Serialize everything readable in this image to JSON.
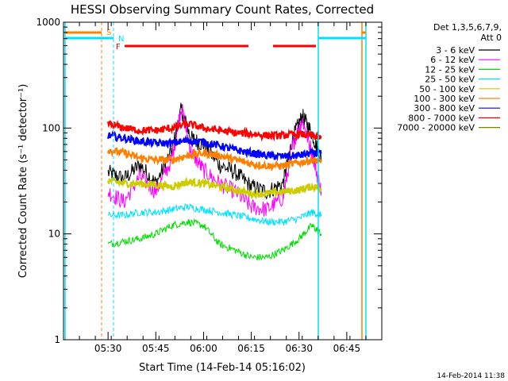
{
  "chart_data": {
    "type": "line",
    "title": "HESSI Observing Summary Count Rates, Corrected",
    "xlabel": "Start Time (14-Feb-14 05:16:02)",
    "ylabel": "Corrected Count Rate (s⁻¹ detector⁻¹)",
    "y_scale": "log",
    "ylim": [
      1,
      1000
    ],
    "xlim": [
      "05:16",
      "06:56"
    ],
    "x_ticks": [
      "05:30",
      "05:45",
      "06:00",
      "06:15",
      "06:30",
      "06:45"
    ],
    "y_ticks": [
      "1",
      "10",
      "100",
      "1000"
    ],
    "timestamp": "14-Feb-2014 11:38",
    "legend": {
      "placement": "right",
      "header_line1": "Det 1,3,5,6,7,9,",
      "header_line2": "Att 0"
    },
    "flags": [
      {
        "label": "S",
        "color": "#ff8000"
      },
      {
        "label": "N",
        "color": "#00e0ff"
      },
      {
        "label": "F",
        "color": "#ff0000"
      }
    ],
    "series": [
      {
        "name": "3 - 6 keV",
        "color": "#000000",
        "x": [
          "05:30",
          "05:35",
          "05:40",
          "05:45",
          "05:50",
          "05:53",
          "05:56",
          "06:00",
          "06:05",
          "06:10",
          "06:15",
          "06:20",
          "06:25",
          "06:28",
          "06:31",
          "06:34",
          "06:37"
        ],
        "values": [
          38,
          33,
          45,
          30,
          60,
          150,
          80,
          70,
          45,
          38,
          28,
          25,
          30,
          80,
          130,
          90,
          50
        ]
      },
      {
        "name": "6 - 12 keV",
        "color": "#ff00ff",
        "x": [
          "05:30",
          "05:35",
          "05:40",
          "05:45",
          "05:50",
          "05:53",
          "05:56",
          "06:00",
          "06:05",
          "06:10",
          "06:15",
          "06:20",
          "06:25",
          "06:28",
          "06:31",
          "06:34",
          "06:37"
        ],
        "values": [
          25,
          20,
          35,
          25,
          50,
          160,
          60,
          40,
          30,
          25,
          18,
          17,
          22,
          70,
          120,
          60,
          25
        ]
      },
      {
        "name": "12 - 25 keV",
        "color": "#00dd00",
        "x": [
          "05:30",
          "05:35",
          "05:40",
          "05:45",
          "05:50",
          "05:55",
          "06:00",
          "06:05",
          "06:10",
          "06:15",
          "06:20",
          "06:25",
          "06:30",
          "06:34",
          "06:37"
        ],
        "values": [
          8,
          8.5,
          9,
          10,
          12,
          13,
          12,
          8,
          7,
          6,
          6,
          7,
          9,
          12,
          10
        ]
      },
      {
        "name": "25 - 50 keV",
        "color": "#00e0ff",
        "x": [
          "05:30",
          "05:35",
          "05:40",
          "05:45",
          "05:50",
          "05:55",
          "06:00",
          "06:05",
          "06:10",
          "06:15",
          "06:20",
          "06:25",
          "06:30",
          "06:34",
          "06:37"
        ],
        "values": [
          15,
          15,
          16,
          16,
          17,
          18,
          17,
          16,
          15,
          14,
          13,
          13,
          14,
          16,
          15
        ]
      },
      {
        "name": "50 - 100 keV",
        "color": "#cccc00",
        "x": [
          "05:30",
          "05:35",
          "05:40",
          "05:45",
          "05:50",
          "05:55",
          "06:00",
          "06:05",
          "06:10",
          "06:15",
          "06:20",
          "06:25",
          "06:30",
          "06:34",
          "06:37"
        ],
        "values": [
          32,
          30,
          30,
          29,
          28,
          31,
          30,
          28,
          26,
          24,
          24,
          25,
          26,
          28,
          27
        ]
      },
      {
        "name": "100 - 300 keV",
        "color": "#ff8000",
        "x": [
          "05:30",
          "05:35",
          "05:40",
          "05:45",
          "05:50",
          "05:55",
          "06:00",
          "06:05",
          "06:10",
          "06:15",
          "06:20",
          "06:25",
          "06:30",
          "06:34",
          "06:37"
        ],
        "values": [
          62,
          58,
          52,
          50,
          50,
          55,
          58,
          55,
          50,
          46,
          44,
          44,
          47,
          50,
          48
        ]
      },
      {
        "name": "300 - 800 keV",
        "color": "#0000ff",
        "x": [
          "05:30",
          "05:35",
          "05:40",
          "05:45",
          "05:50",
          "05:55",
          "06:00",
          "06:05",
          "06:10",
          "06:15",
          "06:20",
          "06:25",
          "06:30",
          "06:34",
          "06:37"
        ],
        "values": [
          85,
          80,
          75,
          72,
          72,
          76,
          74,
          68,
          62,
          58,
          55,
          54,
          55,
          58,
          57
        ]
      },
      {
        "name": "800 - 7000 keV",
        "color": "#ff0000",
        "x": [
          "05:30",
          "05:35",
          "05:40",
          "05:45",
          "05:50",
          "05:55",
          "06:00",
          "06:05",
          "06:10",
          "06:15",
          "06:20",
          "06:25",
          "06:30",
          "06:34",
          "06:37"
        ],
        "values": [
          110,
          100,
          95,
          95,
          100,
          110,
          100,
          95,
          90,
          88,
          85,
          85,
          88,
          85,
          80
        ]
      },
      {
        "name": "7000 - 20000 keV",
        "color": "#808000",
        "x": [],
        "values": []
      }
    ]
  }
}
